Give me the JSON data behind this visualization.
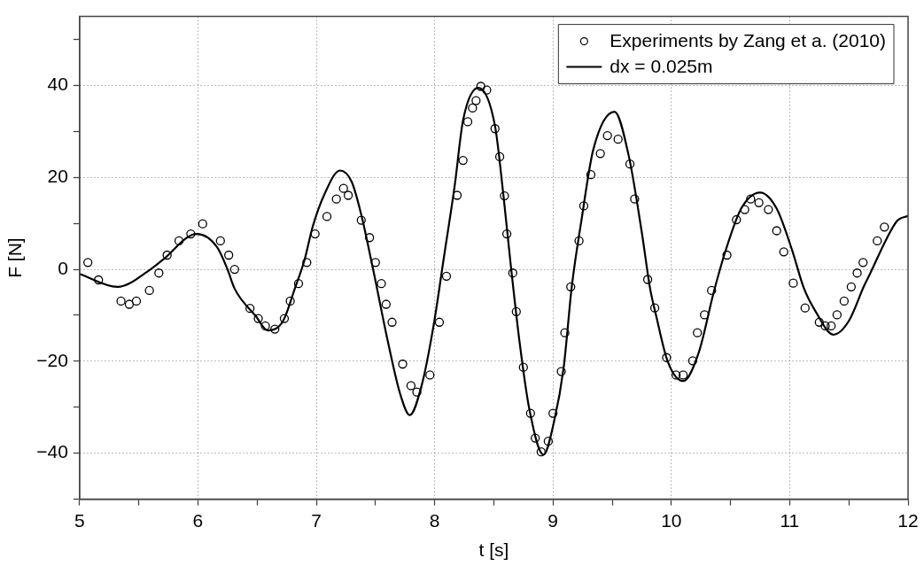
{
  "chart_data": {
    "type": "line",
    "xlabel": "t [s]",
    "ylabel": "F [N]",
    "xlim": [
      5,
      12
    ],
    "xticks": [
      5,
      {
        "value": 5.5,
        "label": null
      },
      6,
      {
        "value": 6.5,
        "label": null
      },
      7,
      {
        "value": 7.5,
        "label": null
      },
      8,
      {
        "value": 8.5,
        "label": null
      },
      9,
      {
        "value": 9.5,
        "label": null
      },
      10,
      {
        "value": 10.5,
        "label": null
      },
      11,
      {
        "value": 11.5,
        "label": null
      },
      12
    ],
    "ylim": [
      -50,
      55
    ],
    "yticks": [
      {
        "value": -50,
        "label": null
      },
      {
        "value": -40,
        "label": "−40"
      },
      {
        "value": -30,
        "label": null
      },
      {
        "value": -20,
        "label": "−20"
      },
      {
        "value": -10,
        "label": null
      },
      0,
      {
        "value": 10,
        "label": null
      },
      20,
      {
        "value": 30,
        "label": null
      },
      40,
      {
        "value": 50,
        "label": null
      }
    ],
    "grid": true,
    "legend": "top right",
    "series": [
      {
        "name": "Experiments by Zang et a. (2010)",
        "type": "scatter",
        "marker": "circle",
        "color": "#000000",
        "x": [
          5.07,
          5.16,
          5.35,
          5.42,
          5.48,
          5.59,
          5.67,
          5.74,
          5.84,
          5.94,
          6.04,
          6.19,
          6.26,
          6.31,
          6.44,
          6.51,
          6.57,
          6.65,
          6.73,
          6.78,
          6.85,
          6.92,
          6.99,
          7.09,
          7.17,
          7.23,
          7.27,
          7.38,
          7.45,
          7.5,
          7.55,
          7.59,
          7.64,
          7.73,
          7.8,
          7.85,
          7.96,
          8.04,
          8.1,
          8.19,
          8.24,
          8.28,
          8.32,
          8.35,
          8.39,
          8.44,
          8.51,
          8.55,
          8.59,
          8.61,
          8.66,
          8.69,
          8.75,
          8.81,
          8.85,
          8.9,
          8.96,
          9.0,
          9.07,
          9.1,
          9.15,
          9.22,
          9.26,
          9.32,
          9.4,
          9.46,
          9.55,
          9.65,
          9.69,
          9.8,
          9.86,
          9.96,
          10.04,
          10.1,
          10.18,
          10.22,
          10.28,
          10.34,
          10.47,
          10.55,
          10.62,
          10.67,
          10.74,
          10.82,
          10.89,
          10.95,
          11.03,
          11.13,
          11.25,
          11.3,
          11.35,
          11.4,
          11.46,
          11.52,
          11.57,
          11.62,
          11.74,
          11.8
        ],
        "values": [
          1.5,
          -2.3,
          -6.9,
          -7.6,
          -6.9,
          -4.6,
          -0.8,
          3.1,
          6.2,
          7.7,
          9.9,
          6.2,
          3.1,
          0.0,
          -8.5,
          -10.7,
          -12.3,
          -13.0,
          -10.7,
          -6.9,
          -3.1,
          1.5,
          7.7,
          11.5,
          15.3,
          17.6,
          16.1,
          10.7,
          6.9,
          1.5,
          -3.1,
          -7.6,
          -11.5,
          -20.6,
          -25.3,
          -26.7,
          -23.0,
          -11.5,
          -1.5,
          16.1,
          23.7,
          32.1,
          35.1,
          36.7,
          39.8,
          39.0,
          30.6,
          24.5,
          16.0,
          7.7,
          -0.8,
          -9.2,
          -21.3,
          -31.3,
          -36.7,
          -39.7,
          -37.4,
          -31.3,
          -22.2,
          -13.8,
          -3.8,
          6.2,
          13.8,
          20.6,
          25.2,
          29.1,
          28.3,
          22.9,
          15.3,
          -2.2,
          -8.4,
          -19.2,
          -23.0,
          -23.0,
          -19.9,
          -13.8,
          -9.9,
          -4.6,
          3.1,
          10.8,
          13.0,
          15.3,
          14.5,
          13.0,
          8.4,
          3.8,
          -3.0,
          -8.4,
          -11.5,
          -12.3,
          -12.3,
          -9.9,
          -6.9,
          -3.8,
          -0.8,
          1.5,
          6.2,
          9.2
        ]
      },
      {
        "name": "dx = 0.025m",
        "marker": "none",
        "line_style": "solid",
        "color": "#000000",
        "x": [
          5,
          5.32,
          5.6,
          5.7,
          5.99,
          6.16,
          6.25,
          6.31,
          6.49,
          6.59,
          6.72,
          6.82,
          6.9,
          6.97,
          7.07,
          7.2,
          7.3,
          7.38,
          7.48,
          7.61,
          7.71,
          7.79,
          7.89,
          7.99,
          8.08,
          8.17,
          8.24,
          8.37,
          8.51,
          8.58,
          8.64,
          8.72,
          8.8,
          8.92,
          9.01,
          9.09,
          9.16,
          9.24,
          9.34,
          9.52,
          9.64,
          9.75,
          9.82,
          9.87,
          9.97,
          10.1,
          10.23,
          10.36,
          10.46,
          10.59,
          10.75,
          10.89,
          11.02,
          11.12,
          11.22,
          11.37,
          11.5,
          11.63,
          11.68,
          11.81,
          11.91,
          12
        ],
        "values": [
          -1.0,
          -3.8,
          0,
          2,
          7.7,
          4.9,
          0,
          -4.2,
          -10.2,
          -13.3,
          -11.2,
          -4.1,
          2.0,
          9.3,
          16.4,
          21.5,
          19.0,
          11.9,
          0,
          -16.3,
          -27.2,
          -31.7,
          -25.3,
          -12.4,
          2.9,
          18.3,
          32.4,
          39.5,
          31.2,
          16.4,
          1.7,
          -16.3,
          -30.4,
          -40.3,
          -33.0,
          -21.4,
          -3.5,
          10.6,
          26.0,
          34.3,
          24.7,
          8.1,
          -4.1,
          -9.9,
          -20.1,
          -24.3,
          -18.2,
          -4.8,
          4.2,
          13.2,
          16.7,
          13.2,
          4.2,
          -4.1,
          -9.2,
          -14.2,
          -11.2,
          -3.5,
          -0.9,
          6.2,
          10.6,
          11.6
        ]
      }
    ]
  }
}
